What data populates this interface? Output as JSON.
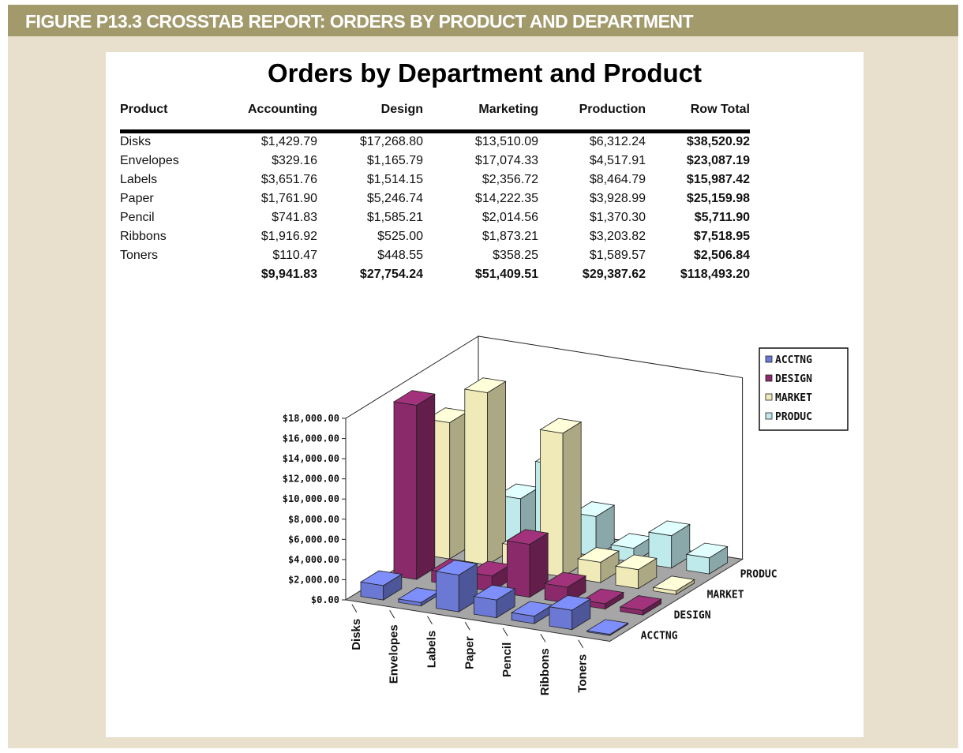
{
  "figure_caption": "FIGURE P13.3  CROSSTAB REPORT: ORDERS BY PRODUCT AND DEPARTMENT",
  "report": {
    "title": "Orders by Department and Product",
    "columns": [
      "Product",
      "Accounting",
      "Design",
      "Marketing",
      "Production",
      "Row Total"
    ],
    "rows": [
      {
        "product": "Disks",
        "values": [
          "$1,429.79",
          "$17,268.80",
          "$13,510.09",
          "$6,312.24"
        ],
        "total": "$38,520.92"
      },
      {
        "product": "Envelopes",
        "values": [
          "$329.16",
          "$1,165.79",
          "$17,074.33",
          "$4,517.91"
        ],
        "total": "$23,087.19"
      },
      {
        "product": "Labels",
        "values": [
          "$3,651.76",
          "$1,514.15",
          "$2,356.72",
          "$8,464.79"
        ],
        "total": "$15,987.42"
      },
      {
        "product": "Paper",
        "values": [
          "$1,761.90",
          "$5,246.74",
          "$14,222.35",
          "$3,928.99"
        ],
        "total": "$25,159.98"
      },
      {
        "product": "Pencil",
        "values": [
          "$741.83",
          "$1,585.21",
          "$2,014.56",
          "$1,370.30"
        ],
        "total": "$5,711.90"
      },
      {
        "product": "Ribbons",
        "values": [
          "$1,916.92",
          "$525.00",
          "$1,873.21",
          "$3,203.82"
        ],
        "total": "$7,518.95"
      },
      {
        "product": "Toners",
        "values": [
          "$110.47",
          "$448.55",
          "$358.25",
          "$1,589.57"
        ],
        "total": "$2,506.84"
      }
    ],
    "column_totals": [
      "$9,941.83",
      "$27,754.24",
      "$51,409.51",
      "$29,387.62"
    ],
    "grand_total": "$118,493.20"
  },
  "colors": {
    "banner": "#a39a6c",
    "frame": "#e8dfcc",
    "floor": "#a6a6a6",
    "ACCTNG": "#6b78d4",
    "DESIGN": "#8a2a6a",
    "MARKET": "#efeab8",
    "PRODUC": "#bfeaec"
  },
  "chart_data": {
    "type": "bar",
    "style": "3d-column",
    "title": "",
    "categories": [
      "Disks",
      "Envelopes",
      "Labels",
      "Paper",
      "Pencil",
      "Ribbons",
      "Toners"
    ],
    "series": [
      {
        "name": "ACCTNG",
        "values": [
          1429.79,
          329.16,
          3651.76,
          1761.9,
          741.83,
          1916.92,
          110.47
        ]
      },
      {
        "name": "DESIGN",
        "values": [
          17268.8,
          1165.79,
          1514.15,
          5246.74,
          1585.21,
          525.0,
          448.55
        ]
      },
      {
        "name": "MARKET",
        "values": [
          13510.09,
          17074.33,
          2356.72,
          14222.35,
          2014.56,
          1873.21,
          358.25
        ]
      },
      {
        "name": "PRODUC",
        "values": [
          6312.24,
          4517.91,
          8464.79,
          3928.99,
          1370.3,
          3203.82,
          1589.57
        ]
      }
    ],
    "y_ticks": [
      "$0.00",
      "$2,000.00",
      "$4,000.00",
      "$6,000.00",
      "$8,000.00",
      "$10,000.00",
      "$12,000.00",
      "$14,000.00",
      "$16,000.00",
      "$18,000.00"
    ],
    "ylim": [
      0,
      18000
    ],
    "legend_position": "right",
    "grid": false
  }
}
